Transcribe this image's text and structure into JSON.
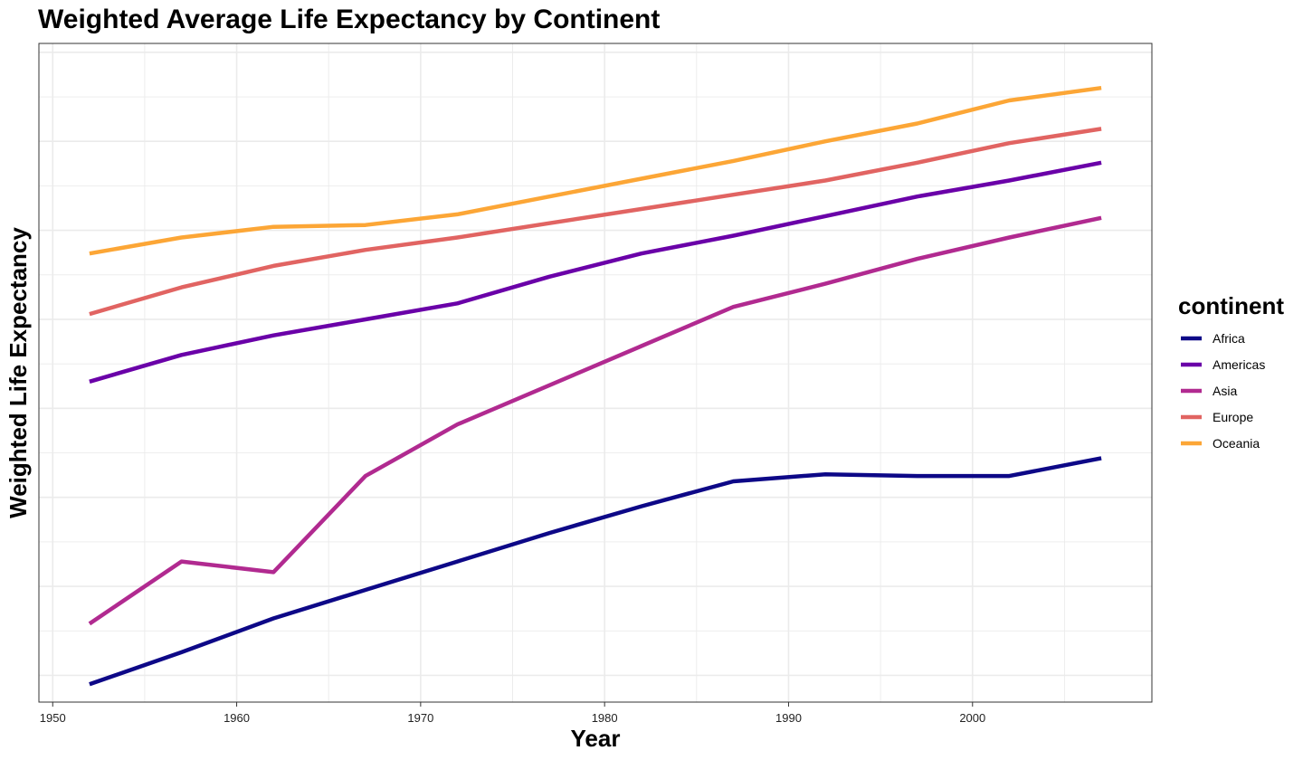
{
  "chart_data": {
    "type": "line",
    "title": "Weighted Average Life Expectancy by Continent",
    "xlabel": "Year",
    "ylabel": "Weighted Life Expectancy",
    "x": [
      1952,
      1957,
      1962,
      1967,
      1972,
      1977,
      1982,
      1987,
      1992,
      1997,
      2002,
      2007
    ],
    "xticks": [
      1950,
      1960,
      1970,
      1980,
      1990,
      2000
    ],
    "xlim": [
      1949.25,
      2009.75
    ],
    "ylim": [
      38.5,
      75.5
    ],
    "yticks_shown": false,
    "grid": true,
    "legend": {
      "title": "continent",
      "position": "right"
    },
    "series": [
      {
        "name": "Africa",
        "color": "#0D0887",
        "values": [
          39.5,
          41.3,
          43.2,
          44.8,
          46.4,
          48.0,
          49.5,
          50.9,
          51.3,
          51.2,
          51.2,
          52.2
        ]
      },
      {
        "name": "Americas",
        "color": "#6A00A8",
        "values": [
          56.5,
          58.0,
          59.1,
          60.0,
          60.9,
          62.4,
          63.7,
          64.7,
          65.8,
          66.9,
          67.8,
          68.8
        ]
      },
      {
        "name": "Asia",
        "color": "#B12A90",
        "values": [
          42.9,
          46.4,
          45.8,
          51.2,
          54.1,
          56.3,
          58.5,
          60.7,
          62.0,
          63.4,
          64.6,
          65.7
        ]
      },
      {
        "name": "Europe",
        "color": "#E16462",
        "values": [
          60.3,
          61.8,
          63.0,
          63.9,
          64.6,
          65.4,
          66.2,
          67.0,
          67.8,
          68.8,
          69.9,
          70.7
        ]
      },
      {
        "name": "Oceania",
        "color": "#FCA636",
        "values": [
          63.7,
          64.6,
          65.2,
          65.3,
          65.9,
          66.9,
          67.9,
          68.9,
          70.0,
          71.0,
          72.3,
          73.0
        ]
      }
    ]
  }
}
